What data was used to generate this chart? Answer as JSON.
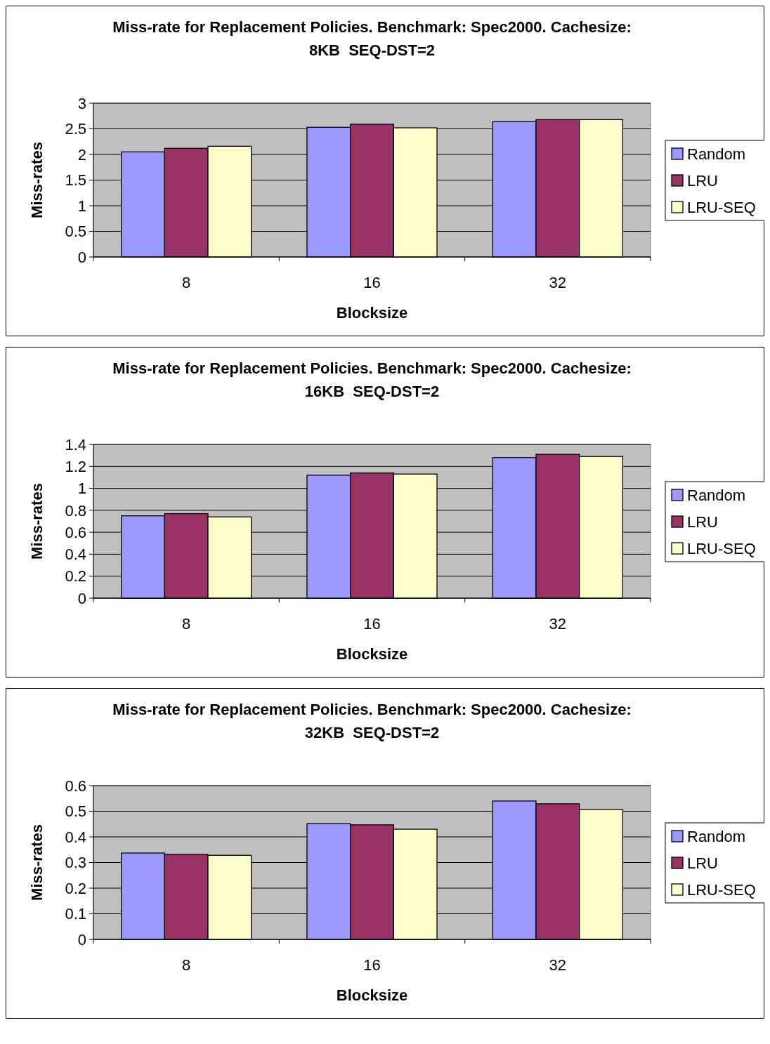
{
  "chart_data": [
    {
      "type": "bar",
      "title": "Miss-rate for Replacement Policies. Benchmark: Spec2000. Cachesize:\n8KB  SEQ-DST=2",
      "xlabel": "Blocksize",
      "ylabel": "Miss-rates",
      "categories": [
        "8",
        "16",
        "32"
      ],
      "ylim": [
        0,
        3
      ],
      "yticks": [
        0,
        0.5,
        1,
        1.5,
        2,
        2.5,
        3
      ],
      "grid": "y",
      "legend": "right",
      "series": [
        {
          "name": "Random",
          "color": "#9999ff",
          "values": [
            2.05,
            2.53,
            2.64
          ]
        },
        {
          "name": "LRU",
          "color": "#993366",
          "values": [
            2.12,
            2.59,
            2.68
          ]
        },
        {
          "name": "LRU-SEQ",
          "color": "#ffffcc",
          "values": [
            2.16,
            2.52,
            2.68
          ]
        }
      ]
    },
    {
      "type": "bar",
      "title": "Miss-rate for Replacement Policies. Benchmark: Spec2000. Cachesize:\n16KB  SEQ-DST=2",
      "xlabel": "Blocksize",
      "ylabel": "Miss-rates",
      "categories": [
        "8",
        "16",
        "32"
      ],
      "ylim": [
        0,
        1.4
      ],
      "yticks": [
        0,
        0.2,
        0.4,
        0.6,
        0.8,
        1,
        1.2,
        1.4
      ],
      "grid": "y",
      "legend": "right",
      "series": [
        {
          "name": "Random",
          "color": "#9999ff",
          "values": [
            0.75,
            1.12,
            1.28
          ]
        },
        {
          "name": "LRU",
          "color": "#993366",
          "values": [
            0.77,
            1.14,
            1.31
          ]
        },
        {
          "name": "LRU-SEQ",
          "color": "#ffffcc",
          "values": [
            0.74,
            1.13,
            1.29
          ]
        }
      ]
    },
    {
      "type": "bar",
      "title": "Miss-rate for Replacement Policies. Benchmark: Spec2000. Cachesize:\n32KB  SEQ-DST=2",
      "xlabel": "Blocksize",
      "ylabel": "Miss-rates",
      "categories": [
        "8",
        "16",
        "32"
      ],
      "ylim": [
        0,
        0.6
      ],
      "yticks": [
        0,
        0.1,
        0.2,
        0.3,
        0.4,
        0.5,
        0.6
      ],
      "grid": "y",
      "legend": "right",
      "series": [
        {
          "name": "Random",
          "color": "#9999ff",
          "values": [
            0.337,
            0.452,
            0.54
          ]
        },
        {
          "name": "LRU",
          "color": "#993366",
          "values": [
            0.332,
            0.447,
            0.529
          ]
        },
        {
          "name": "LRU-SEQ",
          "color": "#ffffcc",
          "values": [
            0.328,
            0.43,
            0.507
          ]
        }
      ]
    }
  ]
}
